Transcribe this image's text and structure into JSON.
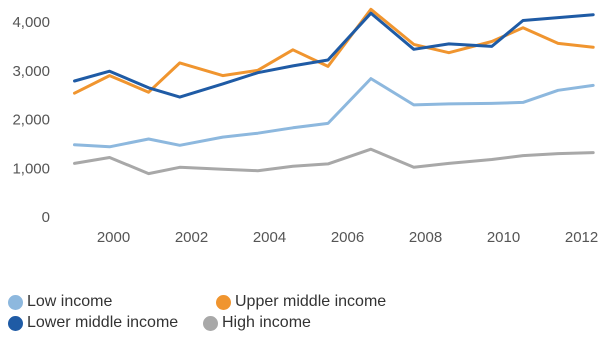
{
  "chart_data": {
    "type": "line",
    "title": "",
    "xlabel": "",
    "ylabel": "",
    "x": [
      1999.0,
      1999.9,
      2000.9,
      2001.7,
      2002.8,
      2003.7,
      2004.6,
      2005.5,
      2006.6,
      2007.7,
      2008.6,
      2009.7,
      2010.5,
      2011.4,
      2012.3
    ],
    "xlim": [
      1998.5,
      2012.55
    ],
    "x_ticks": [
      "2000",
      "2002",
      "2004",
      "2006",
      "2008",
      "2010",
      "2012"
    ],
    "ylim": [
      0,
      4000
    ],
    "y_ticks": [
      "0",
      "1,000",
      "2,000",
      "3,000",
      "4,000"
    ],
    "grid": false,
    "legend_position": "bottom-left",
    "series": [
      {
        "name": "Low income",
        "color": "#8db8de",
        "values": [
          1480,
          1440,
          1600,
          1470,
          1640,
          1720,
          1830,
          1920,
          2840,
          2300,
          2320,
          2330,
          2350,
          2600,
          2700
        ]
      },
      {
        "name": "Lower middle income",
        "color": "#1f5ba5",
        "values": [
          2790,
          2990,
          2650,
          2460,
          2730,
          2960,
          3100,
          3220,
          4180,
          3440,
          3550,
          3500,
          4030,
          4090,
          4150
        ]
      },
      {
        "name": "Upper middle income",
        "color": "#f0952f",
        "values": [
          2540,
          2900,
          2560,
          3160,
          2900,
          3010,
          3430,
          3090,
          4260,
          3540,
          3370,
          3600,
          3880,
          3560,
          3480
        ]
      },
      {
        "name": "High income",
        "color": "#a8a8a8",
        "values": [
          1100,
          1220,
          890,
          1020,
          980,
          950,
          1040,
          1090,
          1390,
          1020,
          1100,
          1180,
          1260,
          1300,
          1320
        ]
      }
    ]
  },
  "legend": [
    {
      "label": "Low income",
      "color": "#8db8de"
    },
    {
      "label": "Upper middle income",
      "color": "#f0952f"
    },
    {
      "label": "Lower middle income",
      "color": "#1f5ba5"
    },
    {
      "label": "High income",
      "color": "#a8a8a8"
    }
  ]
}
